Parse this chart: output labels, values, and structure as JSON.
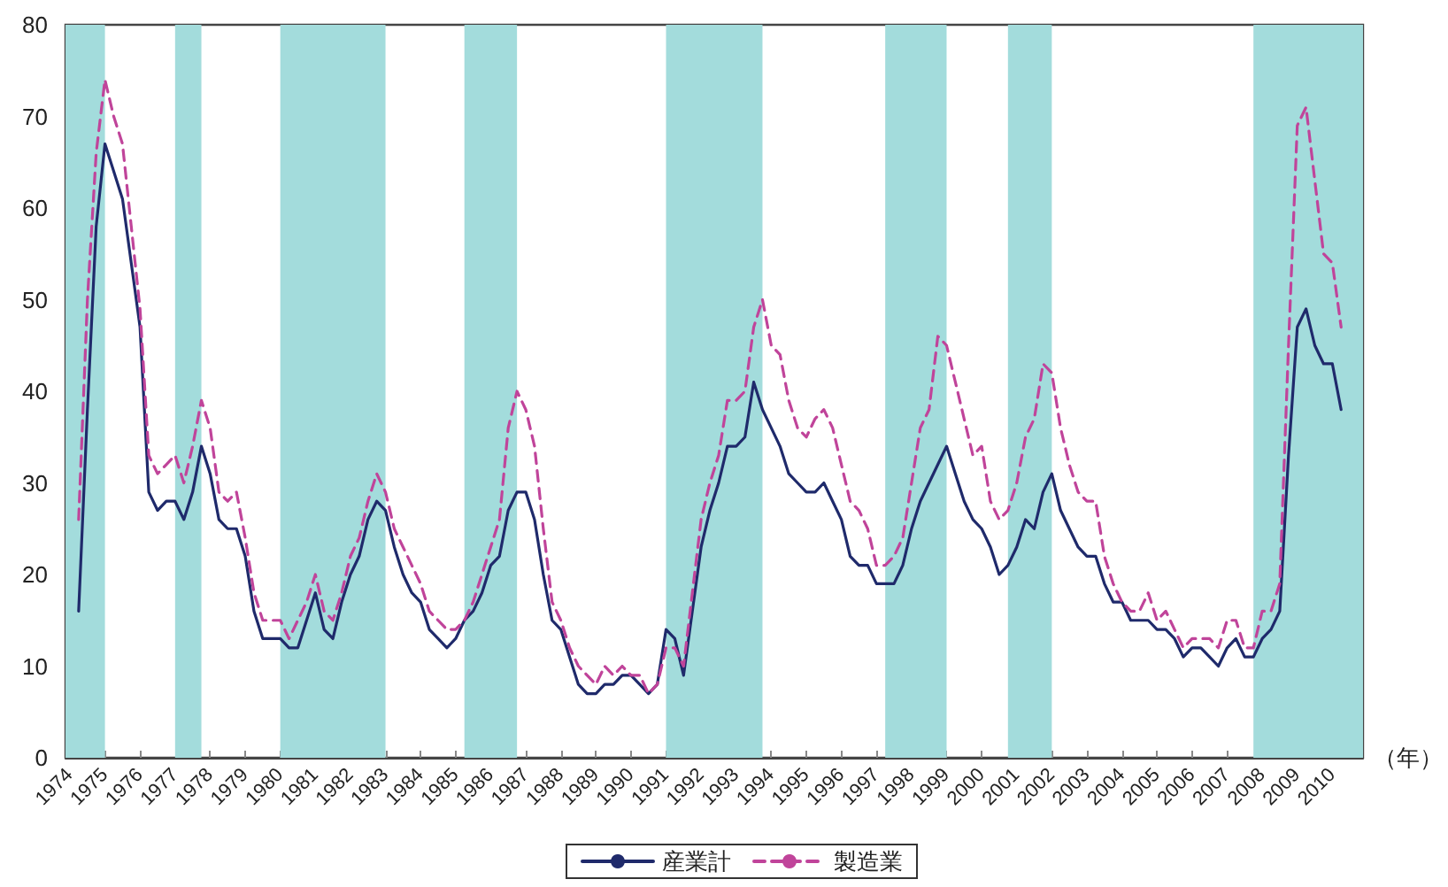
{
  "chart_data": {
    "type": "line",
    "xlabel": "（年）",
    "x": [
      1974.25,
      1974.5,
      1974.75,
      1975,
      1975.25,
      1975.5,
      1975.75,
      1976,
      1976.25,
      1976.5,
      1976.75,
      1977,
      1977.25,
      1977.5,
      1977.75,
      1978,
      1978.25,
      1978.5,
      1978.75,
      1979,
      1979.25,
      1979.5,
      1979.75,
      1980,
      1980.25,
      1980.5,
      1980.75,
      1981,
      1981.25,
      1981.5,
      1981.75,
      1982,
      1982.25,
      1982.5,
      1982.75,
      1983,
      1983.25,
      1983.5,
      1983.75,
      1984,
      1984.25,
      1984.5,
      1984.75,
      1985,
      1985.25,
      1985.5,
      1985.75,
      1986,
      1986.25,
      1986.5,
      1986.75,
      1987,
      1987.25,
      1987.5,
      1987.75,
      1988,
      1988.25,
      1988.5,
      1988.75,
      1989,
      1989.25,
      1989.5,
      1989.75,
      1990,
      1990.25,
      1990.5,
      1990.75,
      1991,
      1991.25,
      1991.5,
      1991.75,
      1992,
      1992.25,
      1992.5,
      1992.75,
      1993,
      1993.25,
      1993.5,
      1993.75,
      1994,
      1994.25,
      1994.5,
      1994.75,
      1995,
      1995.25,
      1995.5,
      1995.75,
      1996,
      1996.25,
      1996.5,
      1996.75,
      1997,
      1997.25,
      1997.5,
      1997.75,
      1998,
      1998.25,
      1998.5,
      1998.75,
      1999,
      1999.25,
      1999.5,
      1999.75,
      2000,
      2000.25,
      2000.5,
      2000.75,
      2001,
      2001.25,
      2001.5,
      2001.75,
      2002,
      2002.25,
      2002.5,
      2002.75,
      2003,
      2003.25,
      2003.5,
      2003.75,
      2004,
      2004.25,
      2004.5,
      2004.75,
      2005,
      2005.25,
      2005.5,
      2005.75,
      2006,
      2006.25,
      2006.5,
      2006.75,
      2007,
      2007.25,
      2007.5,
      2007.75,
      2008,
      2008.25,
      2008.5,
      2008.75,
      2009,
      2009.25,
      2009.5,
      2009.75,
      2010,
      2010.25
    ],
    "series": [
      {
        "name": "産業計",
        "color": "#1f2a6b",
        "line_style": "solid",
        "values": [
          16,
          38,
          58,
          67,
          64,
          61,
          54,
          47,
          29,
          27,
          28,
          28,
          26,
          29,
          34,
          31,
          26,
          25,
          25,
          22,
          16,
          13,
          13,
          13,
          12,
          12,
          15,
          18,
          14,
          13,
          17,
          20,
          22,
          26,
          28,
          27,
          23,
          20,
          18,
          17,
          14,
          13,
          12,
          13,
          15,
          16,
          18,
          21,
          22,
          27,
          29,
          29,
          26,
          20,
          15,
          14,
          11,
          8,
          7,
          7,
          8,
          8,
          9,
          9,
          8,
          7,
          8,
          14,
          13,
          9,
          16,
          23,
          27,
          30,
          34,
          34,
          35,
          41,
          38,
          36,
          34,
          31,
          30,
          29,
          29,
          30,
          28,
          26,
          22,
          21,
          21,
          19,
          19,
          19,
          21,
          25,
          28,
          30,
          32,
          34,
          31,
          28,
          26,
          25,
          23,
          20,
          21,
          23,
          26,
          25,
          29,
          31,
          27,
          25,
          23,
          22,
          22,
          19,
          17,
          17,
          15,
          15,
          15,
          14,
          14,
          13,
          11,
          12,
          12,
          11,
          10,
          12,
          13,
          11,
          11,
          13,
          14,
          16,
          33,
          47,
          49,
          45,
          43,
          43,
          38
        ]
      },
      {
        "name": "製造業",
        "color": "#c0449a",
        "line_style": "dashed",
        "values": [
          26,
          50,
          66,
          74,
          70,
          67,
          58,
          49,
          33,
          31,
          32,
          33,
          30,
          34,
          39,
          36,
          29,
          28,
          29,
          24,
          18,
          15,
          15,
          15,
          13,
          15,
          17,
          20,
          16,
          15,
          18,
          22,
          24,
          28,
          31,
          29,
          25,
          23,
          21,
          19,
          16,
          15,
          14,
          14,
          15,
          17,
          20,
          23,
          26,
          36,
          40,
          38,
          34,
          25,
          17,
          15,
          12,
          10,
          9,
          8,
          10,
          9,
          10,
          9,
          9,
          7,
          8,
          12,
          12,
          10,
          18,
          26,
          30,
          33,
          39,
          39,
          40,
          47,
          50,
          45,
          44,
          39,
          36,
          35,
          37,
          38,
          36,
          32,
          28,
          27,
          25,
          21,
          21,
          22,
          24,
          30,
          36,
          38,
          46,
          45,
          41,
          37,
          33,
          34,
          28,
          26,
          27,
          30,
          35,
          37,
          43,
          42,
          36,
          32,
          29,
          28,
          28,
          22,
          19,
          17,
          16,
          16,
          18,
          15,
          16,
          14,
          12,
          13,
          13,
          13,
          12,
          15,
          15,
          12,
          12,
          16,
          16,
          19,
          45,
          69,
          71,
          63,
          55,
          54,
          47
        ]
      }
    ],
    "bands": [
      {
        "axis": "x",
        "from": 1973.875,
        "to": 1975,
        "color": "#a3dcdc"
      },
      {
        "axis": "x",
        "from": 1977,
        "to": 1977.75,
        "color": "#a3dcdc"
      },
      {
        "axis": "x",
        "from": 1980,
        "to": 1983,
        "color": "#a3dcdc"
      },
      {
        "axis": "x",
        "from": 1985.25,
        "to": 1986.75,
        "color": "#a3dcdc"
      },
      {
        "axis": "x",
        "from": 1991,
        "to": 1993.75,
        "color": "#a3dcdc"
      },
      {
        "axis": "x",
        "from": 1997.25,
        "to": 1999,
        "color": "#a3dcdc"
      },
      {
        "axis": "x",
        "from": 2000.75,
        "to": 2002,
        "color": "#a3dcdc"
      },
      {
        "axis": "x",
        "from": 2007.75,
        "to": 2010.875,
        "color": "#a3dcdc"
      }
    ],
    "xlim": [
      1973.875,
      2010.875
    ],
    "xticks": [
      1974,
      1975,
      1976,
      1977,
      1978,
      1979,
      1980,
      1981,
      1982,
      1983,
      1984,
      1985,
      1986,
      1987,
      1988,
      1989,
      1990,
      1991,
      1992,
      1993,
      1994,
      1995,
      1996,
      1997,
      1998,
      1999,
      2000,
      2001,
      2002,
      2003,
      2004,
      2005,
      2006,
      2007,
      2008,
      2009,
      2010
    ],
    "ylim": [
      0,
      80
    ],
    "yticks": [
      0,
      10,
      20,
      30,
      40,
      50,
      60,
      70,
      80
    ],
    "grid": false,
    "legend": "bottom",
    "marker": "none"
  }
}
